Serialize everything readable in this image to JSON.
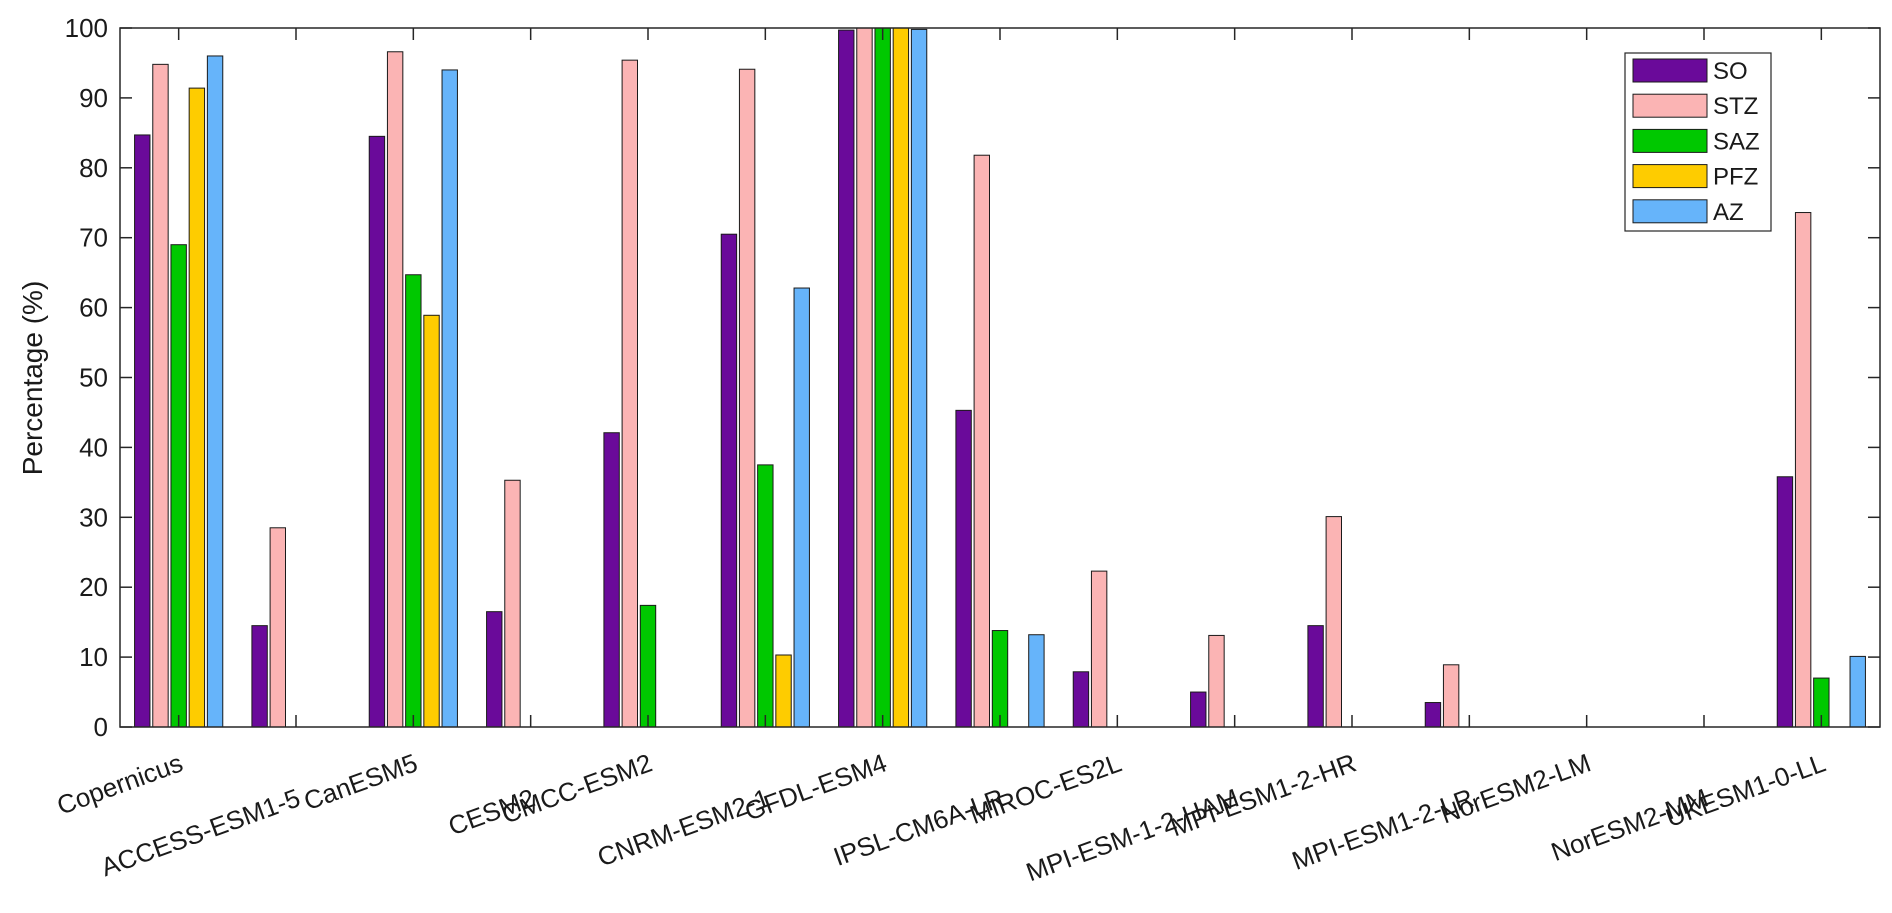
{
  "chart_data": {
    "type": "bar",
    "title": "",
    "xlabel": "",
    "ylabel": "Percentage (%)",
    "ylim": [
      0,
      100
    ],
    "yticks": [
      0,
      10,
      20,
      30,
      40,
      50,
      60,
      70,
      80,
      90,
      100
    ],
    "grid": false,
    "legend_position": "top-right",
    "categories": [
      "Copernicus",
      "ACCESS-ESM1-5",
      "CanESM5",
      "CESM2",
      "CMCC-ESM2",
      "CNRM-ESM2-1",
      "GFDL-ESM4",
      "IPSL-CM6A-LR",
      "MIROC-ES2L",
      "MPI-ESM-1-2-HAM",
      "MPI-ESM1-2-HR",
      "MPI-ESM1-2-LR",
      "NorESM2-LM",
      "NorESM2-MM",
      "UKESM1-0-LL"
    ],
    "series": [
      {
        "name": "SO",
        "color": "#6a0a9a",
        "values": [
          84.7,
          14.5,
          84.5,
          16.5,
          42.1,
          70.5,
          99.7,
          45.3,
          7.9,
          5.0,
          14.5,
          3.5,
          0,
          0,
          35.8
        ]
      },
      {
        "name": "STZ",
        "color": "#fbb4b4",
        "values": [
          94.8,
          28.5,
          96.6,
          35.3,
          95.4,
          94.1,
          100,
          81.8,
          22.3,
          13.1,
          30.1,
          8.9,
          0,
          0,
          73.6
        ]
      },
      {
        "name": "SAZ",
        "color": "#00c800",
        "values": [
          69.0,
          0,
          64.7,
          0,
          17.4,
          37.5,
          100,
          13.8,
          0,
          0,
          0,
          0,
          0,
          0,
          7.0
        ]
      },
      {
        "name": "PFZ",
        "color": "#fecc00",
        "values": [
          91.4,
          0,
          58.9,
          0,
          0,
          10.3,
          100,
          0,
          0,
          0,
          0,
          0,
          0,
          0,
          0
        ]
      },
      {
        "name": "AZ",
        "color": "#66b4fa",
        "values": [
          96.0,
          0,
          94.0,
          0,
          0,
          62.8,
          99.8,
          13.2,
          0,
          0,
          0,
          0,
          0,
          0,
          10.1
        ]
      }
    ]
  }
}
